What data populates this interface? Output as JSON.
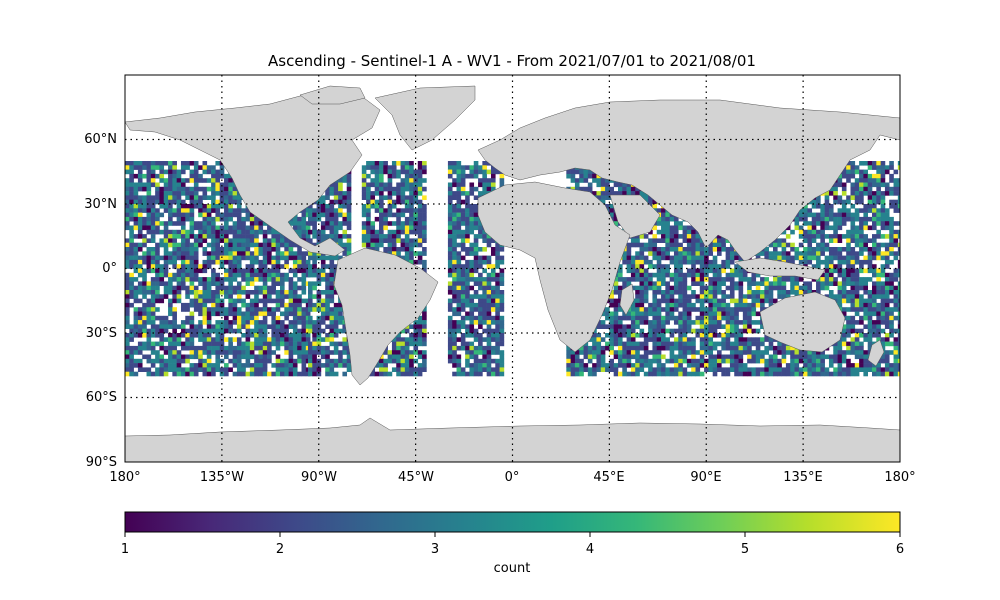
{
  "title": "Ascending - Sentinel-1 A - WV1 - From 2021/07/01 to 2021/08/01",
  "map": {
    "projection": "equirectangular",
    "lon_range": [
      -180,
      180
    ],
    "lat_range": [
      -90,
      90
    ],
    "graticule": "dotted",
    "land_color": "#d3d3d3",
    "ocean_color": "#ffffff",
    "lat_labels": [
      "60°N",
      "30°N",
      "0°",
      "30°S",
      "60°S",
      "90°S"
    ],
    "lon_labels": [
      "180°",
      "135°W",
      "90°W",
      "45°W",
      "0°",
      "45°E",
      "90°E",
      "135°E",
      "180°"
    ]
  },
  "data_coverage": {
    "lat_range": [
      -50,
      50
    ],
    "cell_deg": 2,
    "swaths_lon_ranges": [
      [
        -180,
        -95
      ],
      [
        -95,
        -75
      ],
      [
        -70,
        -40
      ],
      [
        -30,
        -5
      ],
      [
        25,
        65
      ],
      [
        65,
        135
      ],
      [
        135,
        180
      ]
    ]
  },
  "colorbar": {
    "label": "count",
    "colormap": "viridis",
    "min": 1,
    "max": 6,
    "ticks": [
      "1",
      "2",
      "3",
      "4",
      "5",
      "6"
    ],
    "colors": [
      "#440154",
      "#482878",
      "#3e4989",
      "#31688e",
      "#26828e",
      "#1f9e89",
      "#35b779",
      "#6ece58",
      "#b5de2b",
      "#fde725"
    ]
  }
}
